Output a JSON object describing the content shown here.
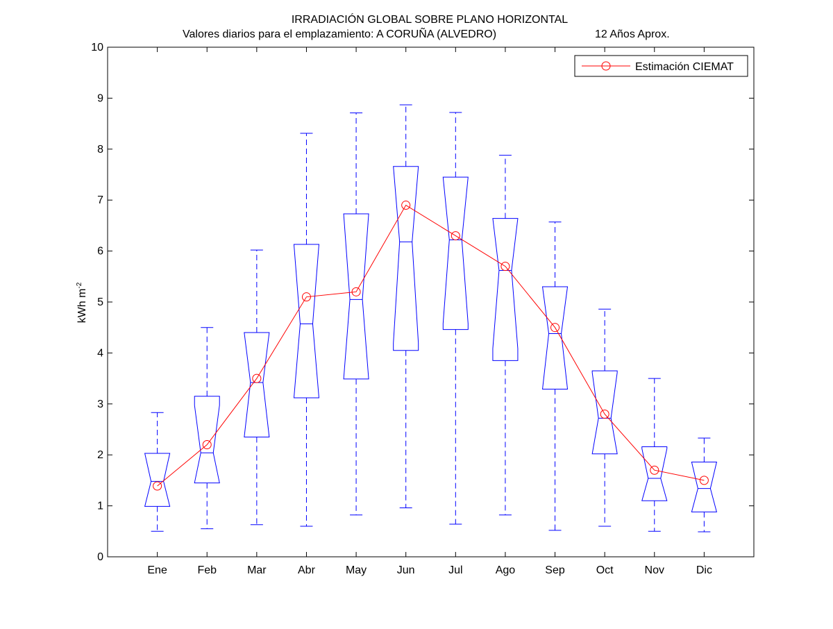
{
  "chart_data": {
    "type": "boxplot",
    "title": "IRRADIACIÓN GLOBAL SOBRE PLANO HORIZONTAL",
    "subtitle_left": "Valores diarios para el emplazamiento:  A CORUÑA (ALVEDRO)",
    "subtitle_right": "12 Años Aprox.",
    "ylabel_main": "kWh m",
    "ylabel_sup": "-2",
    "ylim": [
      0,
      10
    ],
    "yticks": [
      "0",
      "1",
      "2",
      "3",
      "4",
      "5",
      "6",
      "7",
      "8",
      "9",
      "10"
    ],
    "categories": [
      "Ene",
      "Feb",
      "Mar",
      "Abr",
      "May",
      "Jun",
      "Jul",
      "Ago",
      "Sep",
      "Oct",
      "Nov",
      "Dic"
    ],
    "boxes": [
      {
        "min": 0.5,
        "q1": 0.99,
        "median": 1.48,
        "q3": 2.03,
        "max": 2.83
      },
      {
        "min": 0.55,
        "q1": 1.45,
        "median": 2.04,
        "q3": 3.15,
        "max": 4.5
      },
      {
        "min": 0.63,
        "q1": 2.35,
        "median": 3.42,
        "q3": 4.4,
        "max": 6.02
      },
      {
        "min": 0.6,
        "q1": 3.12,
        "median": 4.57,
        "q3": 6.13,
        "max": 8.31
      },
      {
        "min": 0.82,
        "q1": 3.49,
        "median": 5.05,
        "q3": 6.73,
        "max": 8.71
      },
      {
        "min": 0.96,
        "q1": 4.05,
        "median": 6.18,
        "q3": 7.66,
        "max": 8.87
      },
      {
        "min": 0.64,
        "q1": 4.46,
        "median": 6.22,
        "q3": 7.45,
        "max": 8.72
      },
      {
        "min": 0.82,
        "q1": 3.85,
        "median": 5.62,
        "q3": 6.64,
        "max": 7.88
      },
      {
        "min": 0.52,
        "q1": 3.29,
        "median": 4.38,
        "q3": 5.3,
        "max": 6.57
      },
      {
        "min": 0.6,
        "q1": 2.02,
        "median": 2.72,
        "q3": 3.65,
        "max": 4.86
      },
      {
        "min": 0.5,
        "q1": 1.1,
        "median": 1.54,
        "q3": 2.16,
        "max": 3.5
      },
      {
        "min": 0.49,
        "q1": 0.88,
        "median": 1.34,
        "q3": 1.86,
        "max": 2.33
      }
    ],
    "series": [
      {
        "name": "Estimación CIEMAT",
        "color": "#ff0000",
        "marker": "circle",
        "values": [
          1.39,
          2.2,
          3.5,
          5.1,
          5.2,
          6.9,
          6.3,
          5.7,
          4.5,
          2.8,
          1.7,
          1.5
        ]
      }
    ],
    "box_color": "#0000ff",
    "legend_position": "top-right",
    "grid": false
  }
}
